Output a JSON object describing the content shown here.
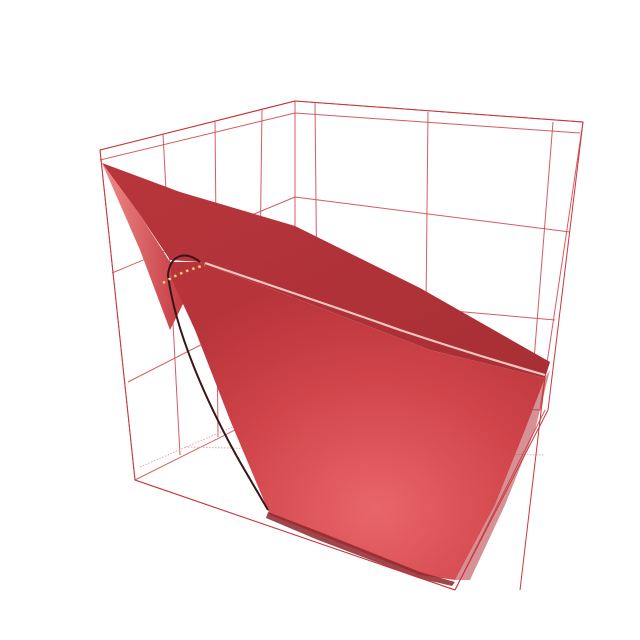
{
  "chart_data": {
    "type": "surface",
    "title": "",
    "xlabel": "",
    "ylabel": "",
    "zlabel": "",
    "axis_ticks_visible": false,
    "grid": true,
    "colors": {
      "surface_light": "#e8666a",
      "surface_mid": "#c9393f",
      "surface_dark": "#a82f35",
      "frame": "#c8363d",
      "contour_light": "#f3c6c0",
      "contour_dark": "#3a1416",
      "marker": "#f2d27a"
    }
  }
}
